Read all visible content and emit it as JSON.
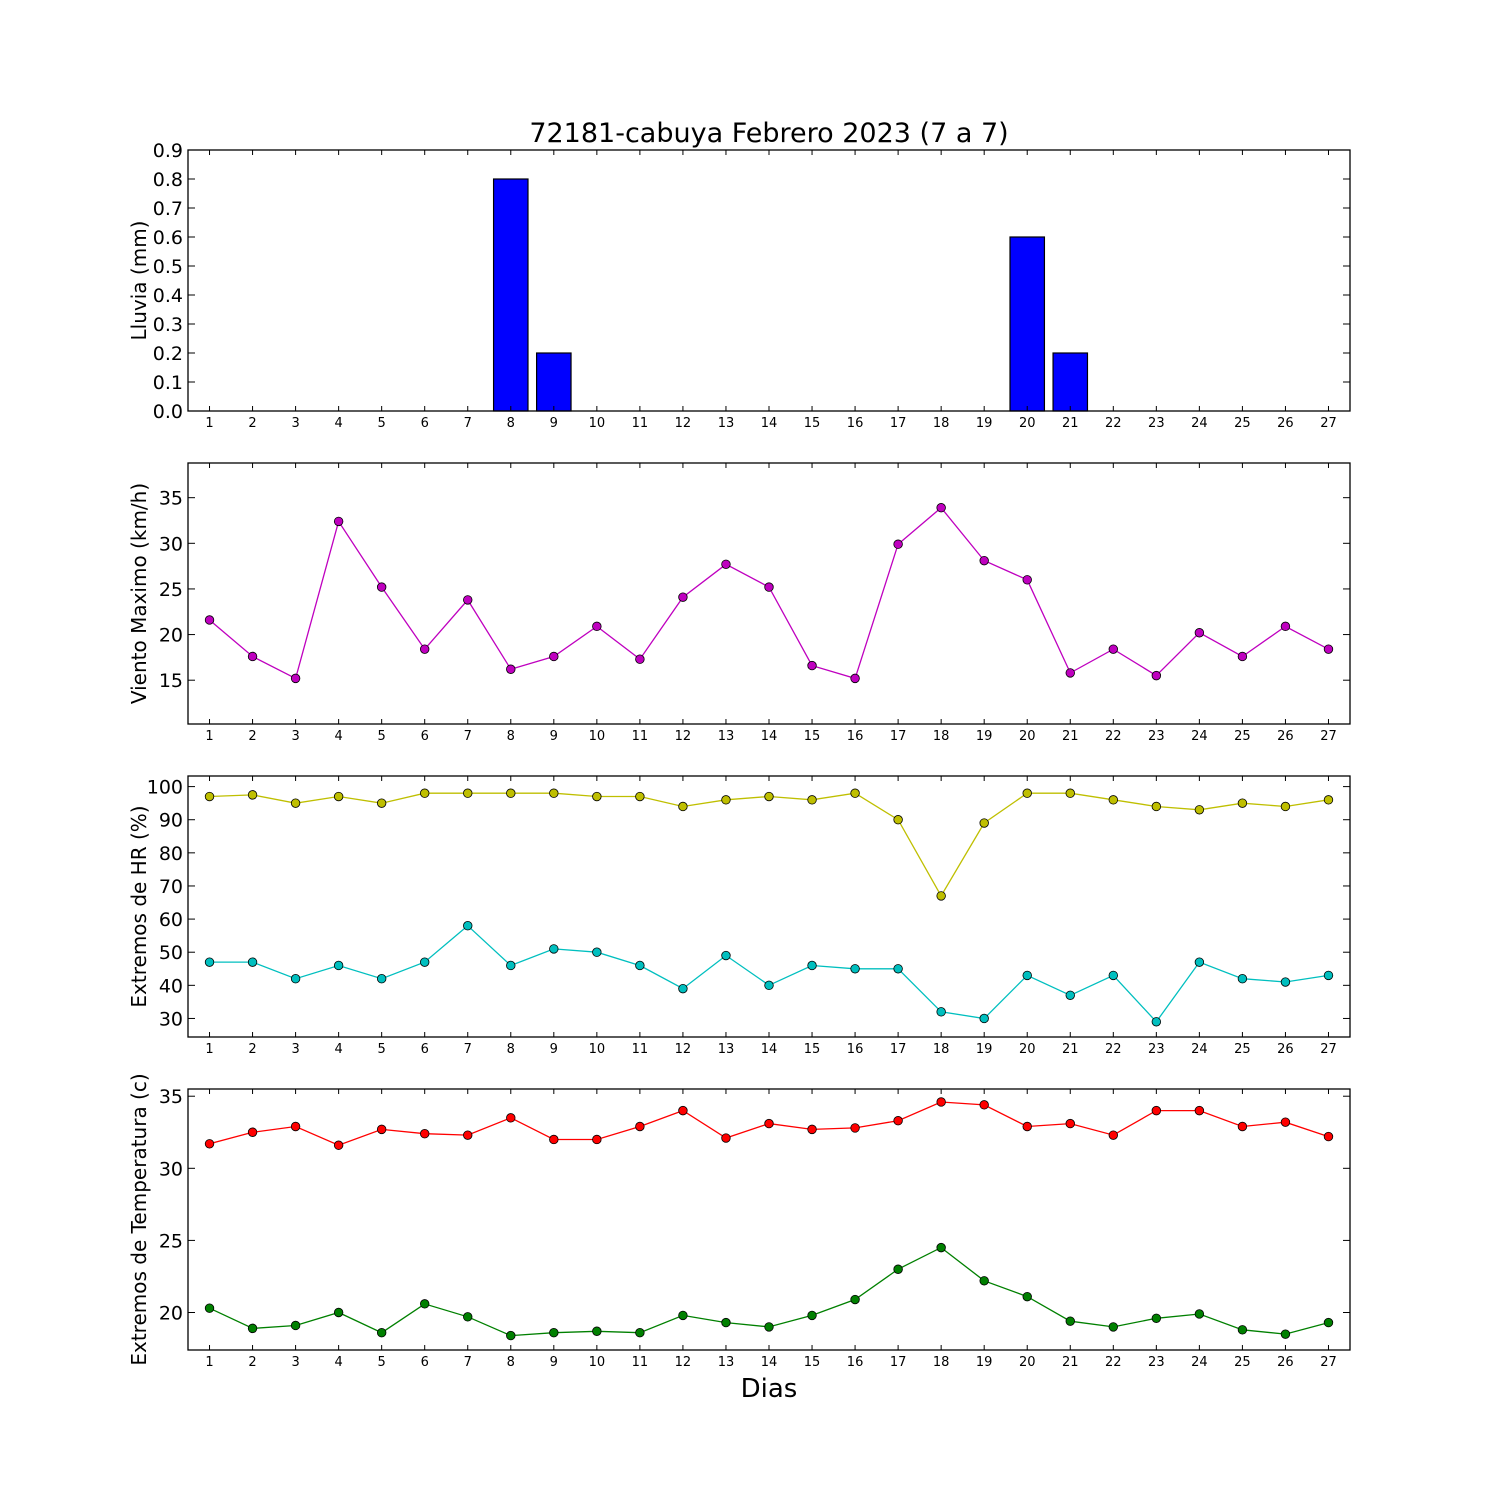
{
  "figure": {
    "title": "72181-cabuya Febrero 2023  (7 a 7)",
    "xlabel": "Dias"
  },
  "chart_data": [
    {
      "type": "bar",
      "ylabel": "Lluvia (mm)",
      "x": [
        1,
        2,
        3,
        4,
        5,
        6,
        7,
        8,
        9,
        10,
        11,
        12,
        13,
        14,
        15,
        16,
        17,
        18,
        19,
        20,
        21,
        22,
        23,
        24,
        25,
        26,
        27
      ],
      "xlim": [
        0.5,
        27.5
      ],
      "ylim": [
        0,
        0.9
      ],
      "yticks": [
        "0.0",
        "0.1",
        "0.2",
        "0.3",
        "0.4",
        "0.5",
        "0.6",
        "0.7",
        "0.8",
        "0.9"
      ],
      "grid": false,
      "series": [
        {
          "color": "#0000ff",
          "values": [
            0,
            0,
            0,
            0,
            0,
            0,
            0,
            0.8,
            0.2,
            0,
            0,
            0,
            0,
            0,
            0,
            0,
            0,
            0,
            0,
            0.6,
            0.2,
            0,
            0,
            0,
            0,
            0,
            0
          ]
        }
      ]
    },
    {
      "type": "line",
      "ylabel": "Viento Maximo (km/h)",
      "x": [
        1,
        2,
        3,
        4,
        5,
        6,
        7,
        8,
        9,
        10,
        11,
        12,
        13,
        14,
        15,
        16,
        17,
        18,
        19,
        20,
        21,
        22,
        23,
        24,
        25,
        26,
        27
      ],
      "xlim": [
        0.5,
        27.5
      ],
      "ylim": [
        10.2,
        38.8
      ],
      "yticks": [
        "15",
        "20",
        "25",
        "30",
        "35"
      ],
      "grid": false,
      "series": [
        {
          "color": "#bf00bf",
          "values": [
            21.6,
            17.6,
            15.2,
            32.4,
            25.2,
            18.4,
            23.8,
            16.2,
            17.6,
            20.9,
            17.3,
            24.1,
            27.7,
            25.2,
            16.6,
            15.2,
            29.9,
            33.9,
            28.1,
            26.0,
            15.8,
            18.4,
            15.5,
            20.2,
            17.6,
            20.9,
            18.4
          ]
        }
      ]
    },
    {
      "type": "line",
      "ylabel": "Extremos de HR (%)",
      "x": [
        1,
        2,
        3,
        4,
        5,
        6,
        7,
        8,
        9,
        10,
        11,
        12,
        13,
        14,
        15,
        16,
        17,
        18,
        19,
        20,
        21,
        22,
        23,
        24,
        25,
        26,
        27
      ],
      "xlim": [
        0.5,
        27.5
      ],
      "ylim": [
        24.4,
        103.2
      ],
      "yticks": [
        "30",
        "40",
        "50",
        "60",
        "70",
        "80",
        "90",
        "100"
      ],
      "grid": false,
      "series": [
        {
          "color": "#bfbf00",
          "values": [
            97,
            97.5,
            95,
            97,
            95,
            98,
            98,
            98,
            98,
            97,
            97,
            94,
            96,
            97,
            96,
            98,
            90,
            67,
            89,
            98,
            98,
            96,
            94,
            93,
            95,
            94,
            96
          ]
        },
        {
          "color": "#00bfbf",
          "values": [
            47,
            47,
            42,
            46,
            42,
            47,
            58,
            46,
            51,
            50,
            46,
            39,
            49,
            40,
            46,
            45,
            45,
            32,
            30,
            43,
            37,
            43,
            29,
            47,
            42,
            41,
            43
          ]
        }
      ]
    },
    {
      "type": "line",
      "ylabel": "Extremos de Temperatura (c)",
      "x": [
        1,
        2,
        3,
        4,
        5,
        6,
        7,
        8,
        9,
        10,
        11,
        12,
        13,
        14,
        15,
        16,
        17,
        18,
        19,
        20,
        21,
        22,
        23,
        24,
        25,
        26,
        27
      ],
      "xlim": [
        0.5,
        27.5
      ],
      "ylim": [
        17.4,
        35.5
      ],
      "yticks": [
        "20",
        "25",
        "30",
        "35"
      ],
      "grid": false,
      "series": [
        {
          "color": "#ff0000",
          "values": [
            31.7,
            32.5,
            32.9,
            31.6,
            32.7,
            32.4,
            32.3,
            33.5,
            32.0,
            32.0,
            32.9,
            34.0,
            32.1,
            33.1,
            32.7,
            32.8,
            33.3,
            34.6,
            34.4,
            32.9,
            33.1,
            32.3,
            34.0,
            34.0,
            32.9,
            33.2,
            32.2
          ]
        },
        {
          "color": "#008000",
          "values": [
            20.3,
            18.9,
            19.1,
            20.0,
            18.6,
            20.6,
            19.7,
            18.4,
            18.6,
            18.7,
            18.6,
            19.8,
            19.3,
            19.0,
            19.8,
            20.9,
            23.0,
            24.5,
            22.2,
            21.1,
            19.4,
            19.0,
            19.6,
            19.9,
            18.8,
            18.5,
            19.3
          ]
        }
      ]
    }
  ]
}
